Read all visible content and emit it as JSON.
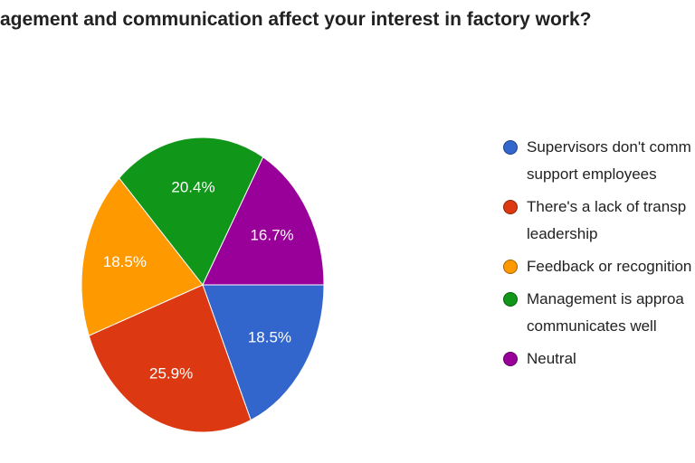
{
  "chart_data": {
    "type": "pie",
    "title": "agement and communication affect your interest in factory work?",
    "start_angle": 90,
    "series": [
      {
        "name": "Supervisors don't comm\nsupport employees",
        "color": "#3366cc",
        "value": 18.5,
        "value_label": "18.5%"
      },
      {
        "name": "There's a lack of transp\nleadership",
        "color": "#dc3912",
        "value": 25.9,
        "value_label": "25.9%"
      },
      {
        "name": "Feedback or recognition",
        "color": "#ff9900",
        "value": 18.5,
        "value_label": "18.5%"
      },
      {
        "name": "Management is approa\ncommunicates well",
        "color": "#109618",
        "value": 20.4,
        "value_label": "20.4%"
      },
      {
        "name": "Neutral",
        "color": "#990099",
        "value": 16.7,
        "value_label": "16.7%"
      }
    ]
  }
}
